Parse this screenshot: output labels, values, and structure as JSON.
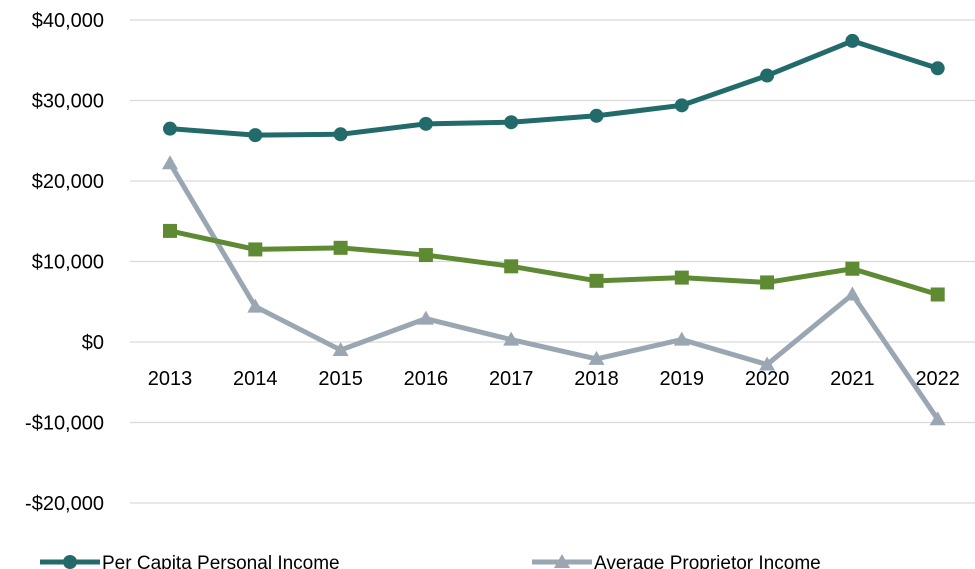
{
  "chart_data": {
    "type": "line",
    "categories": [
      "2013",
      "2014",
      "2015",
      "2016",
      "2017",
      "2018",
      "2019",
      "2020",
      "2021",
      "2022"
    ],
    "ylim": [
      -20000,
      40000
    ],
    "y_ticks": [
      40000,
      30000,
      20000,
      10000,
      0,
      -10000,
      -20000
    ],
    "y_tick_labels": [
      "$40,000",
      "$30,000",
      "$20,000",
      "$10,000",
      "$0",
      "-$10,000",
      "-$20,000"
    ],
    "grid": "horizontal",
    "legend_position": "bottom",
    "series": [
      {
        "name": "Per Capita Personal Income",
        "color": "#236a6a",
        "marker": "circle",
        "values": [
          26500,
          25700,
          25800,
          27100,
          27300,
          28100,
          29400,
          33100,
          37400,
          34000
        ]
      },
      {
        "name": "",
        "color": "#5e8a34",
        "marker": "square",
        "values": [
          13800,
          11500,
          11700,
          10800,
          9400,
          7600,
          8000,
          7400,
          9100,
          5900
        ]
      },
      {
        "name": "Average Proprietor Income",
        "color": "#9aa7b2",
        "marker": "triangle",
        "values": [
          22200,
          4400,
          -1000,
          2900,
          300,
          -2100,
          300,
          -2800,
          5900,
          -9600
        ]
      }
    ]
  }
}
